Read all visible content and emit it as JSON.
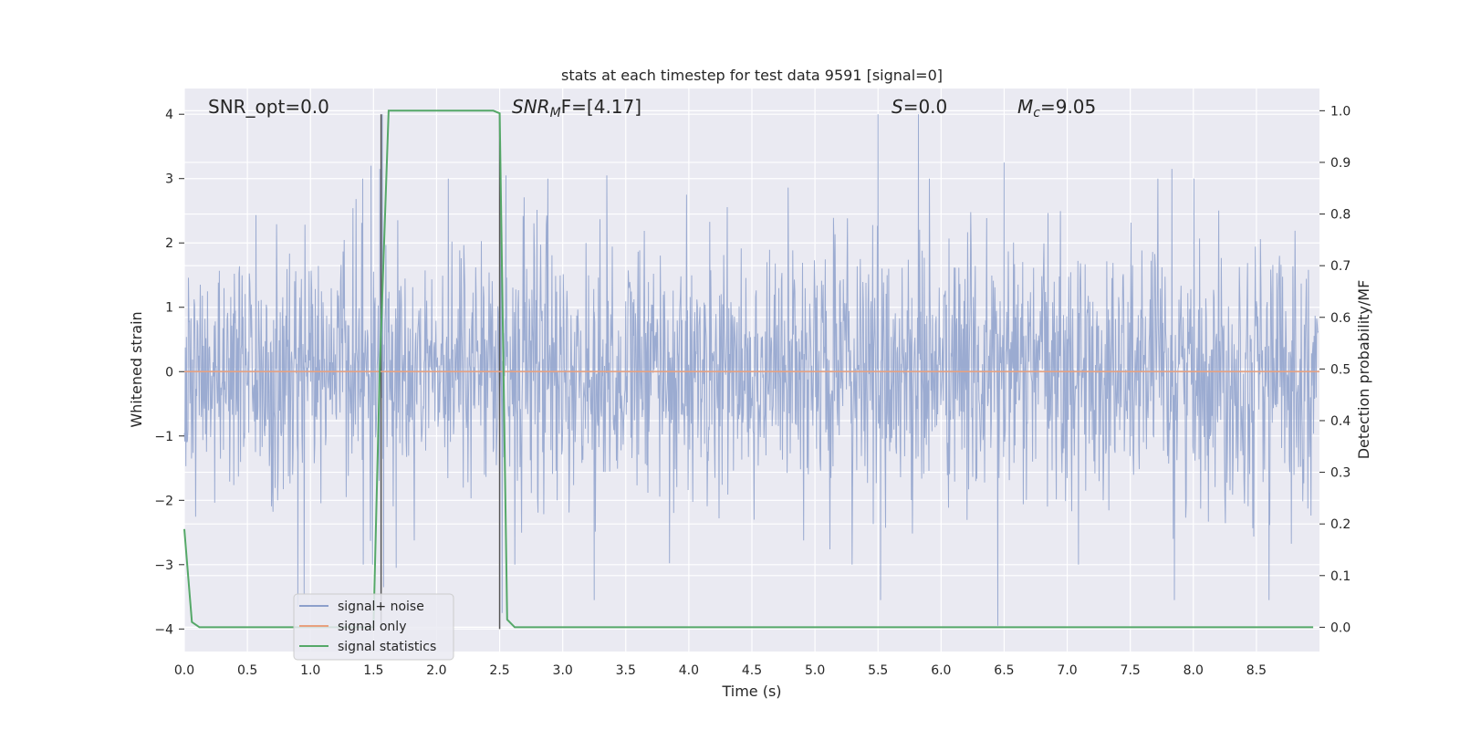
{
  "chart_data": {
    "type": "line",
    "title": "stats at each timestep for test data 9591 [signal=0]",
    "xlabel": "Time (s)",
    "ylabel": "Whitened strain",
    "y2label": "Detection probability/MF",
    "xlim": [
      0.0,
      9.0
    ],
    "ylim": [
      -4.35,
      4.4
    ],
    "y2lim": [
      -0.047,
      1.043
    ],
    "x_ticks": [
      "0.0",
      "0.5",
      "1.0",
      "1.5",
      "2.0",
      "2.5",
      "3.0",
      "3.5",
      "4.0",
      "4.5",
      "5.0",
      "5.5",
      "6.0",
      "6.5",
      "7.0",
      "7.5",
      "8.0",
      "8.5"
    ],
    "y_ticks": [
      "4",
      "3",
      "2",
      "1",
      "0",
      "−1",
      "−2",
      "−3",
      "−4"
    ],
    "y2_ticks": [
      "1.0",
      "0.9",
      "0.8",
      "0.7",
      "0.6",
      "0.5",
      "0.4",
      "0.3",
      "0.2",
      "0.1",
      "0.0"
    ],
    "grid": true,
    "legend_position": "lower-left",
    "annotations": {
      "snr_opt": "SNR_opt=0.0",
      "snr_mf_label": "SNR",
      "snr_mf_sub": "M",
      "snr_mf_suffix": "F=[4.17]",
      "s_label": "S",
      "s_value": "=0.0",
      "mc_label": "M",
      "mc_sub": "c",
      "mc_value": "=9.05"
    },
    "series": [
      {
        "name": "signal+ noise",
        "color": "#8da0cb",
        "axis": "left",
        "kind": "noise",
        "envelope_std": 1.0,
        "spikes": [
          {
            "x": 1.48,
            "y": 3.2
          },
          {
            "x": 1.55,
            "y": 3.15
          },
          {
            "x": 1.57,
            "y": 4.0
          },
          {
            "x": 1.58,
            "y": -3.35
          },
          {
            "x": 1.68,
            "y": -3.05
          },
          {
            "x": 2.52,
            "y": -3.75
          },
          {
            "x": 2.55,
            "y": 3.05
          },
          {
            "x": 3.25,
            "y": -3.55
          },
          {
            "x": 3.35,
            "y": 3.05
          },
          {
            "x": 5.5,
            "y": 4.0
          },
          {
            "x": 5.52,
            "y": -3.55
          },
          {
            "x": 5.82,
            "y": 4.0
          },
          {
            "x": 6.45,
            "y": -3.95
          },
          {
            "x": 6.5,
            "y": 3.25
          },
          {
            "x": 7.83,
            "y": 3.15
          },
          {
            "x": 7.85,
            "y": -3.55
          },
          {
            "x": 8.6,
            "y": -3.55
          },
          {
            "x": 0.9,
            "y": -3.65
          },
          {
            "x": 0.95,
            "y": -3.45
          }
        ]
      },
      {
        "name": "signal only",
        "color": "#e8a07e",
        "axis": "left",
        "kind": "flat",
        "value": 0.0
      },
      {
        "name": "signal statistics",
        "color": "#55a868",
        "axis": "right",
        "kind": "line",
        "x": [
          0.0,
          0.06,
          0.12,
          0.5,
          1.0,
          1.5,
          1.55,
          1.62,
          2.0,
          2.45,
          2.5,
          2.56,
          2.62,
          3.0,
          4.0,
          5.0,
          6.0,
          7.0,
          8.0,
          8.95
        ],
        "values": [
          0.19,
          0.01,
          0.0,
          0.0,
          0.0,
          0.0,
          0.5,
          1.0,
          1.0,
          1.0,
          0.995,
          0.015,
          0.0,
          0.0,
          0.0,
          0.0,
          0.0,
          0.0,
          0.0,
          0.0
        ]
      }
    ],
    "vertical_markers": [
      1.56,
      2.5
    ]
  }
}
